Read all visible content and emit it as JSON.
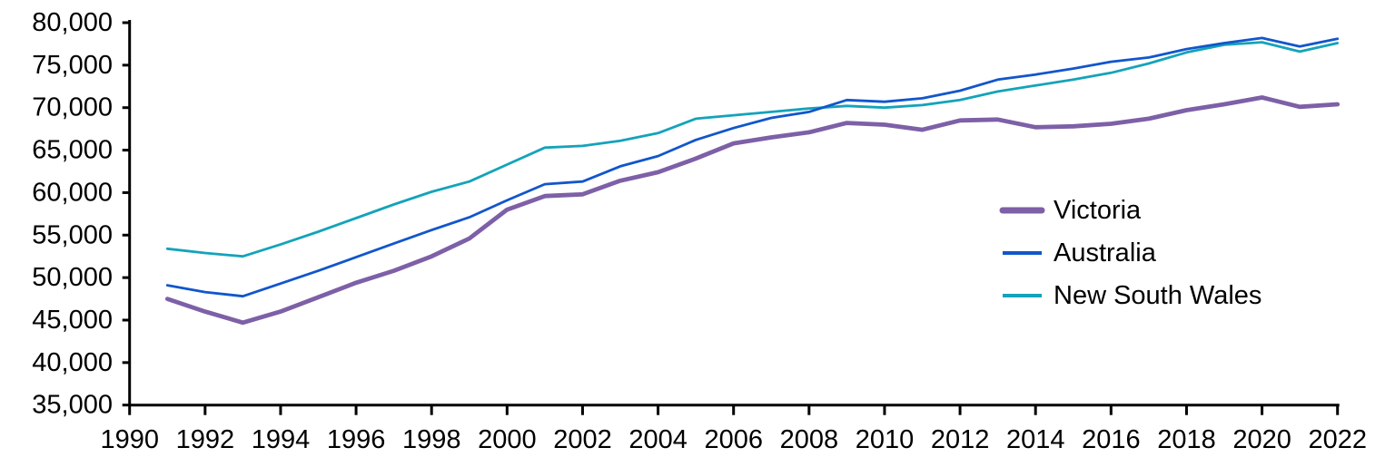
{
  "chart_data": {
    "type": "line",
    "title": "",
    "xlabel": "",
    "ylabel": "",
    "grid": false,
    "x": [
      1991,
      1992,
      1993,
      1994,
      1995,
      1996,
      1997,
      1998,
      1999,
      2000,
      2001,
      2002,
      2003,
      2004,
      2005,
      2006,
      2007,
      2008,
      2009,
      2010,
      2011,
      2012,
      2013,
      2014,
      2015,
      2016,
      2017,
      2018,
      2019,
      2020,
      2021,
      2022
    ],
    "xlim": [
      1990,
      2022
    ],
    "ylim": [
      35000,
      80000
    ],
    "xticks": [
      1990,
      1992,
      1994,
      1996,
      1998,
      2000,
      2002,
      2004,
      2006,
      2008,
      2010,
      2012,
      2014,
      2016,
      2018,
      2020,
      2022
    ],
    "yticks": [
      35000,
      40000,
      45000,
      50000,
      55000,
      60000,
      65000,
      70000,
      75000,
      80000
    ],
    "legend_position": "right-middle",
    "series": [
      {
        "name": "Victoria",
        "color": "#7d60a7",
        "line_width": 4.8,
        "values": [
          47500,
          46000,
          44700,
          46000,
          47700,
          49400,
          50800,
          52500,
          54600,
          58000,
          59600,
          59800,
          61400,
          62400,
          64000,
          65800,
          66500,
          67100,
          68200,
          68000,
          67400,
          68500,
          68600,
          67700,
          67800,
          68100,
          68700,
          69700,
          70400,
          71200,
          70100,
          70400
        ]
      },
      {
        "name": "Australia",
        "color": "#1156cb",
        "line_width": 2.8,
        "values": [
          49100,
          48300,
          47800,
          49300,
          50800,
          52400,
          54000,
          55600,
          57100,
          59100,
          61000,
          61300,
          63100,
          64300,
          66200,
          67600,
          68800,
          69500,
          70900,
          70700,
          71100,
          72000,
          73300,
          73900,
          74600,
          75400,
          75900,
          76900,
          77600,
          78200,
          77200,
          78100
        ]
      },
      {
        "name": "New South Wales",
        "color": "#14a3ba",
        "line_width": 2.8,
        "values": [
          53400,
          52900,
          52500,
          53900,
          55400,
          57000,
          58600,
          60100,
          61300,
          63300,
          65300,
          65500,
          66100,
          67000,
          68700,
          69100,
          69500,
          69900,
          70200,
          70000,
          70300,
          70900,
          71900,
          72600,
          73300,
          74100,
          75200,
          76500,
          77400,
          77700,
          76600,
          77600
        ]
      }
    ],
    "axis_color": "#000000",
    "text_color": "#000000"
  },
  "legend": {
    "items": [
      {
        "label": "Victoria"
      },
      {
        "label": "Australia"
      },
      {
        "label": "New South Wales"
      }
    ]
  }
}
